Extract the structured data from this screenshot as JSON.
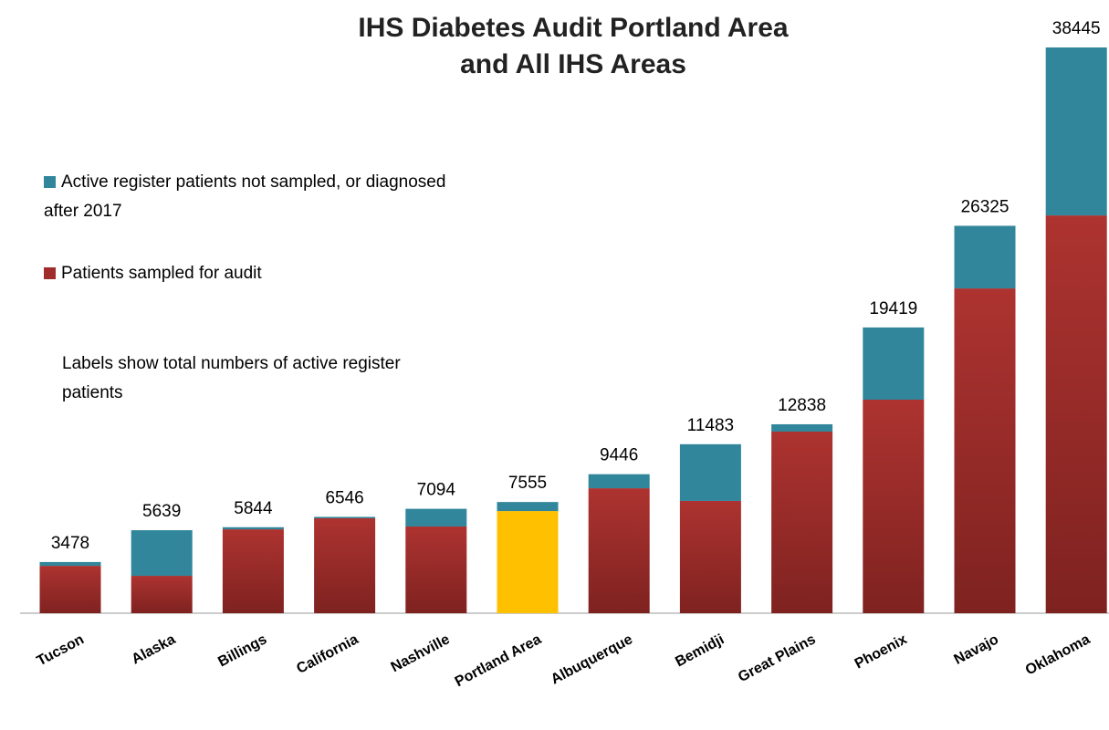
{
  "chart_data": {
    "type": "stacked_bar",
    "title": [
      "IHS Diabetes Audit Portland Area",
      "and All IHS Areas"
    ],
    "annotation": "Labels show total numbers of active register patients",
    "categories": [
      "Tucson",
      "Alaska",
      "Billings",
      "California",
      "Nashville",
      "Portland Area",
      "Albuquerque",
      "Bemidji",
      "Great Plains",
      "Phoenix",
      "Navajo",
      "Oklahoma"
    ],
    "series": [
      {
        "name": "Patients sampled for audit",
        "color": "#9e2d2b",
        "point_colors": [
          null,
          null,
          null,
          null,
          null,
          "#ffc000",
          null,
          null,
          null,
          null,
          null,
          null
        ],
        "values": [
          3220,
          2540,
          5700,
          6450,
          5890,
          6940,
          8490,
          7630,
          12340,
          14510,
          22070,
          27030
        ]
      },
      {
        "name": "Active register patients not sampled, or diagnosed after 2017",
        "color": "#31869b",
        "values": [
          258,
          3099,
          144,
          96,
          1204,
          615,
          956,
          3853,
          498,
          4909,
          4255,
          11415
        ]
      }
    ],
    "totals": [
      3478,
      5639,
      5844,
      6546,
      7094,
      7555,
      9446,
      11483,
      12838,
      19419,
      26325,
      38445
    ],
    "legend": "top-left"
  }
}
